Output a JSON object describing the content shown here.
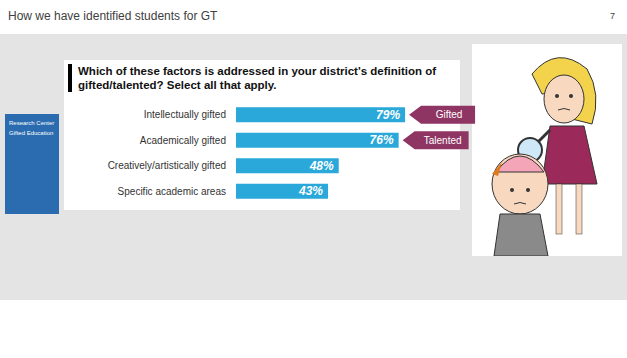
{
  "slide": {
    "title": "How we have identified students for GT",
    "page": "7",
    "cover": [
      "Research Center",
      "Gifted Education"
    ]
  },
  "chart_data": {
    "type": "bar",
    "orientation": "horizontal",
    "title": "Which of these factors is addressed in your district's definition of gifted/talented? Select all that apply.",
    "categories": [
      "Intellectually gifted",
      "Academically gifted",
      "Creatively/artistically gifted",
      "Specific academic areas"
    ],
    "values": [
      79,
      76,
      48,
      43
    ],
    "value_labels": [
      "79%",
      "76%",
      "48%",
      "43%"
    ],
    "color": "#29a8d9",
    "xlim": [
      0,
      100
    ],
    "data_labels": true,
    "tick_labels": "y",
    "grid": false,
    "annotations": [
      {
        "text": "Gifted",
        "category": "Intellectually gifted",
        "color": "#8e3563"
      },
      {
        "text": "Talented",
        "category": "Academically gifted",
        "color": "#8e3563"
      }
    ]
  }
}
